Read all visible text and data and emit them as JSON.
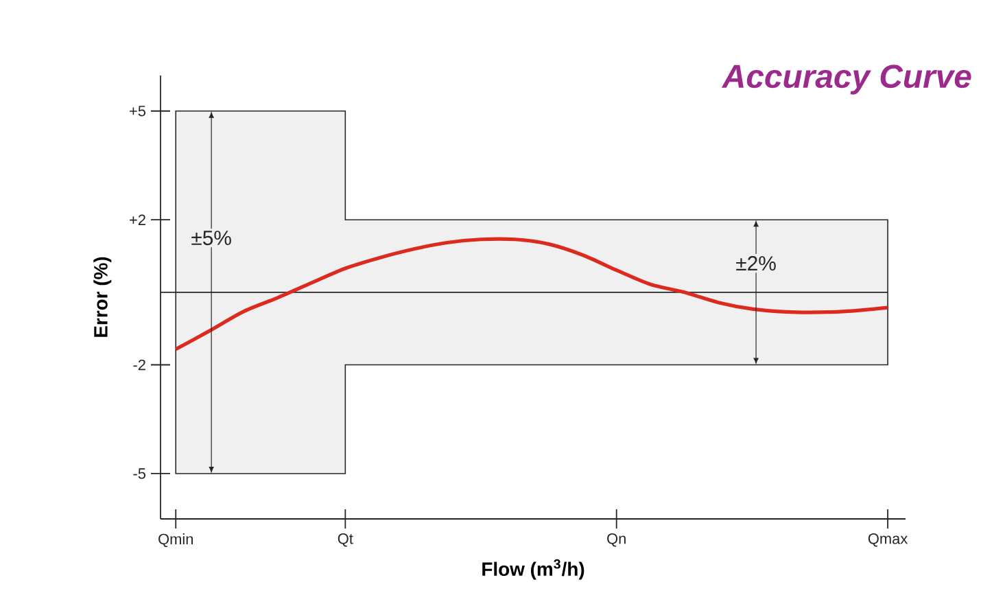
{
  "chart_data": {
    "type": "line",
    "title": "Accuracy Curve",
    "xlabel": "Flow (m$^{3}$/h)",
    "ylabel": "Error (%)",
    "categories": [
      "Qmin",
      null,
      null,
      null,
      null,
      "Qt",
      null,
      null,
      null,
      null,
      null,
      null,
      null,
      "Qn",
      null,
      null,
      null,
      null,
      null,
      null,
      null,
      "Qmax"
    ],
    "ylim": [
      -6.25,
      5.98
    ],
    "yticks": [
      {
        "value": -5,
        "label": "-5"
      },
      {
        "value": -2,
        "label": "-2"
      },
      {
        "value": 2,
        "label": "+2"
      },
      {
        "value": 5,
        "label": "+5"
      }
    ],
    "series": [
      {
        "color": "#dd2a1e",
        "values": [
          -1.57,
          -1.06,
          -0.53,
          -0.15,
          0.26,
          0.66,
          0.95,
          1.19,
          1.37,
          1.46,
          1.46,
          1.33,
          1.03,
          0.61,
          0.22,
          0,
          -0.28,
          -0.46,
          -0.54,
          -0.55,
          -0.51,
          -0.42
        ],
        "upper": [
          5,
          5,
          5,
          5,
          5,
          5,
          2,
          2,
          2,
          2,
          2,
          2,
          2,
          2,
          2,
          2,
          2,
          2,
          2,
          2,
          2,
          2
        ],
        "lower": [
          -5,
          -5,
          -5,
          -5,
          -5,
          -5,
          -2,
          -2,
          -2,
          -2,
          -2,
          -2,
          -2,
          -2,
          -2,
          -2,
          -2,
          -2,
          -2,
          -2,
          -2,
          -2
        ]
      }
    ],
    "ref_lines": [
      {
        "axis": "y",
        "value": 0
      }
    ],
    "annotations": [
      {
        "text": "±5%",
        "y": 1.5
      },
      {
        "text": "±2%",
        "y": 0.8
      }
    ]
  }
}
